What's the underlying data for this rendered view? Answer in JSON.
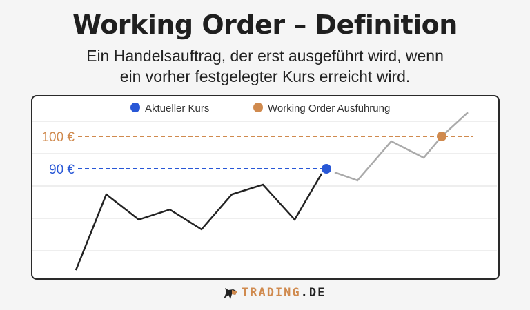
{
  "title": "Working Order – Definition",
  "subtitle_line1": "Ein Handelsauftrag, der erst ausgeführt wird, wenn",
  "subtitle_line2": "ein vorher festgelegter Kurs erreicht wird.",
  "logo": {
    "main": "TRADING",
    "suffix": ".DE"
  },
  "chart_data": {
    "type": "line",
    "legend": [
      {
        "name": "Aktueller Kurs",
        "color": "#2857d6"
      },
      {
        "name": "Working Order Ausführung",
        "color": "#d08a4e"
      }
    ],
    "legend_position": "top-center",
    "grid": true,
    "reference_lines": [
      {
        "label": "100 €",
        "value": 100,
        "color": "#d08a4e"
      },
      {
        "label": "90 €",
        "value": 90,
        "color": "#2857d6"
      }
    ],
    "series": [
      {
        "style": "solid-black",
        "color": "#222222",
        "values": [
          58.7,
          82.1,
          74.3,
          77.4,
          71.3,
          82.1,
          85.1,
          74.3,
          88.5,
          90
        ]
      },
      {
        "style": "projected-gray",
        "color": "#aaaaaa",
        "values": [
          90,
          88.9,
          86.4,
          98.5,
          93.4,
          100,
          107.4
        ]
      }
    ],
    "current_price": 90,
    "execution_price": 100
  }
}
